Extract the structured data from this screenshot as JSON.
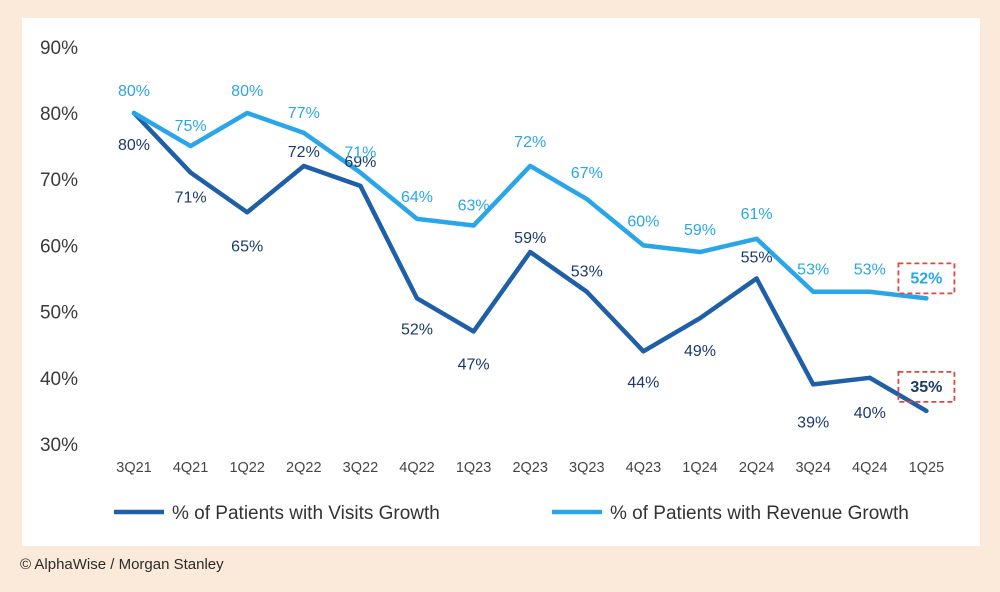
{
  "chart_data": {
    "type": "line",
    "categories": [
      "3Q21",
      "4Q21",
      "1Q22",
      "2Q22",
      "3Q22",
      "4Q22",
      "1Q23",
      "2Q23",
      "3Q23",
      "4Q23",
      "1Q24",
      "2Q24",
      "3Q24",
      "4Q24",
      "1Q25"
    ],
    "series": [
      {
        "name": "% of Patients with Visits Growth",
        "color": "#1f5fa8",
        "values": [
          80,
          71,
          65,
          72,
          69,
          52,
          47,
          59,
          53,
          44,
          49,
          55,
          39,
          40,
          35
        ],
        "labels": [
          "80%",
          "71%",
          "65%",
          "72%",
          "69%",
          "52%",
          "47%",
          "59%",
          "53%",
          "44%",
          "49%",
          "55%",
          "39%",
          "40%",
          "35%"
        ]
      },
      {
        "name": "% of Patients with Revenue Growth",
        "color": "#2aa6e8",
        "values": [
          80,
          75,
          80,
          77,
          71,
          64,
          63,
          72,
          67,
          60,
          59,
          61,
          53,
          53,
          52
        ],
        "labels": [
          "80%",
          "75%",
          "80%",
          "77%",
          "71%",
          "64%",
          "63%",
          "72%",
          "67%",
          "60%",
          "59%",
          "61%",
          "53%",
          "53%",
          "52%"
        ]
      }
    ],
    "y_ticks": [
      "30%",
      "40%",
      "50%",
      "60%",
      "70%",
      "80%",
      "90%"
    ],
    "ylim": [
      30,
      90
    ],
    "grid": false,
    "legend_position": "bottom",
    "highlight_box_color": "#e0473f",
    "title": "",
    "xlabel": "",
    "ylabel": ""
  },
  "credit": "© AlphaWise / Morgan Stanley"
}
